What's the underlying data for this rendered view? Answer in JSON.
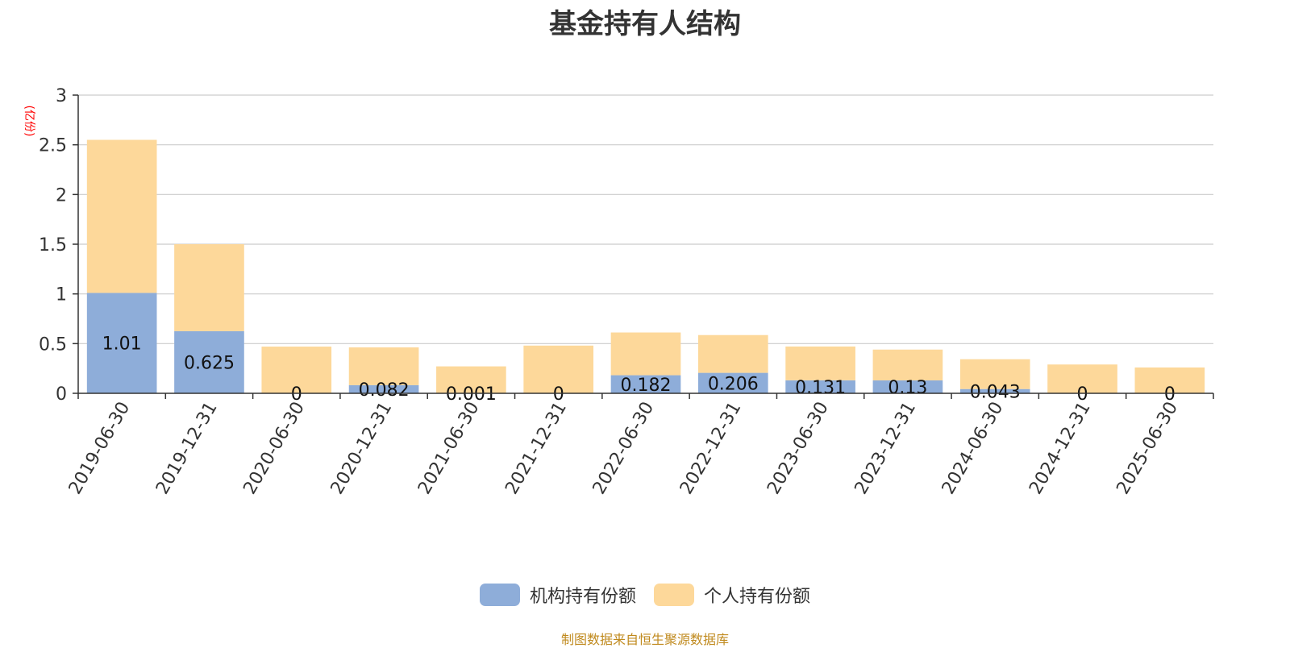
{
  "chart_data": {
    "type": "bar",
    "stacked": true,
    "title": "基金持有人结构",
    "unit": "(亿份)",
    "categories": [
      "2019-06-30",
      "2019-12-31",
      "2020-06-30",
      "2020-12-31",
      "2021-06-30",
      "2021-12-31",
      "2022-06-30",
      "2022-12-31",
      "2023-06-30",
      "2023-12-31",
      "2024-06-30",
      "2024-12-31",
      "2025-06-30"
    ],
    "series": [
      {
        "name": "机构持有份额",
        "color": "#8eadd9",
        "values": [
          1.01,
          0.625,
          0,
          0.082,
          0.001,
          0,
          0.182,
          0.206,
          0.131,
          0.13,
          0.043,
          0,
          0
        ],
        "labels": [
          "1.01",
          "0.625",
          "0",
          "0.082",
          "0.001",
          "0",
          "0.182",
          "0.206",
          "0.131",
          "0.13",
          "0.043",
          "0",
          "0"
        ]
      },
      {
        "name": "个人持有份额",
        "color": "#fdd89a",
        "values": [
          1.54,
          0.875,
          0.47,
          0.38,
          0.27,
          0.48,
          0.43,
          0.38,
          0.34,
          0.31,
          0.3,
          0.29,
          0.26
        ]
      }
    ],
    "ylim": [
      0,
      3
    ],
    "yticks": [
      "0",
      "0.5",
      "1",
      "1.5",
      "2",
      "2.5",
      "3"
    ],
    "grid": true,
    "legend_position": "bottom-center"
  },
  "source_note": "制图数据来自恒生聚源数据库"
}
